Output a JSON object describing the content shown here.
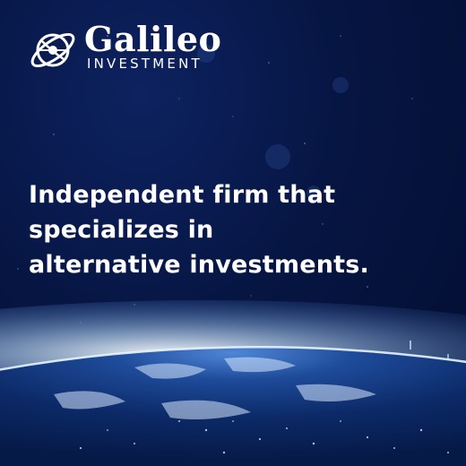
{
  "brand": {
    "name": "Galileo",
    "tagline": "INVESTMENT",
    "logo_icon": "globe-orbit-icon"
  },
  "headline": "Independent firm that specializes in alternative investments.",
  "colors": {
    "background": "#061542",
    "text": "#ffffff",
    "glow": "#9fd4ff",
    "earth": "#0a2a6a"
  }
}
